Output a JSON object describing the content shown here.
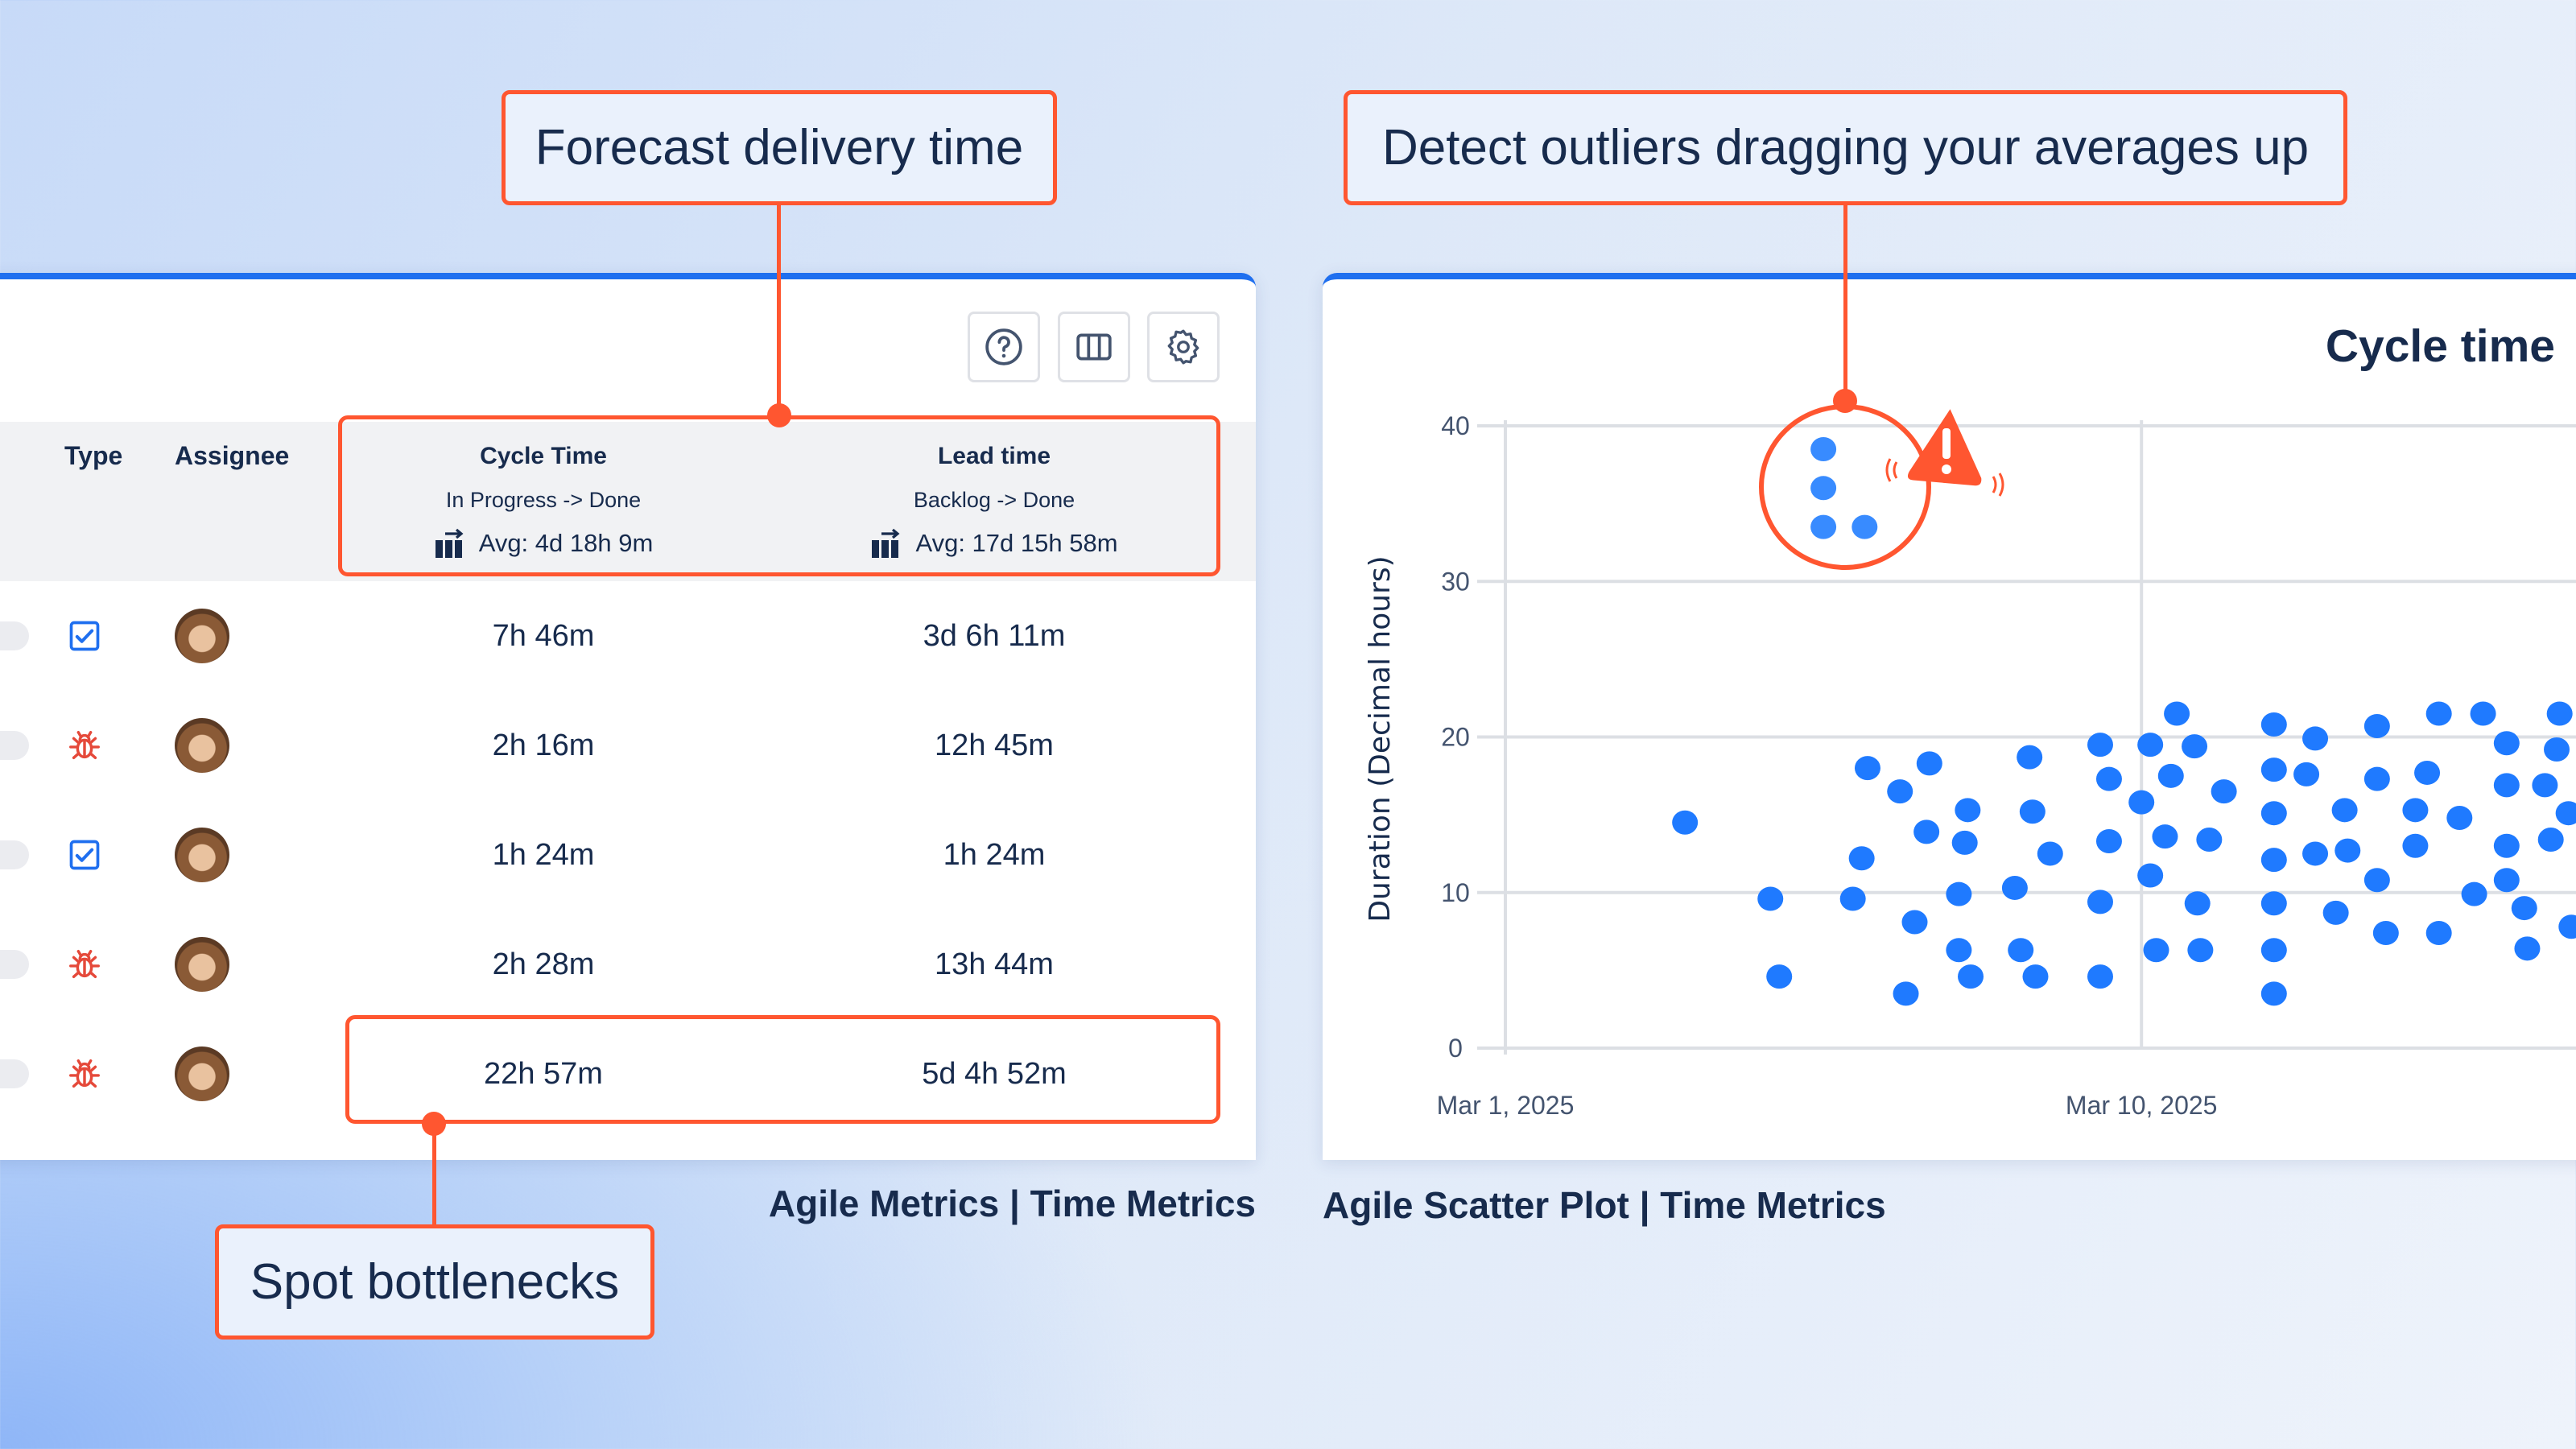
{
  "callouts": {
    "forecast": "Forecast delivery time",
    "outliers": "Detect outliers dragging your averages up",
    "bottlenecks": "Spot bottlenecks"
  },
  "table_panel": {
    "toolbar": {
      "help_icon": "question-circle-icon",
      "columns_icon": "columns-icon",
      "settings_icon": "gear-icon"
    },
    "headers": {
      "type": "Type",
      "assignee": "Assignee"
    },
    "cycle": {
      "title": "Cycle Time",
      "transition": "In Progress -> Done",
      "avg": "Avg: 4d 18h 9m"
    },
    "lead": {
      "title": "Lead time",
      "transition": "Backlog -> Done",
      "avg": "Avg: 17d 15h 58m"
    },
    "rows": [
      {
        "type": "task",
        "cycle": "7h 46m",
        "lead": "3d 6h 11m"
      },
      {
        "type": "bug",
        "cycle": "2h 16m",
        "lead": "12h 45m"
      },
      {
        "type": "task",
        "cycle": "1h 24m",
        "lead": "1h 24m"
      },
      {
        "type": "bug",
        "cycle": "2h 28m",
        "lead": "13h 44m"
      },
      {
        "type": "bug",
        "cycle": "22h 57m",
        "lead": "5d 4h 52m"
      }
    ],
    "caption": "Agile Metrics | Time Metrics"
  },
  "chart_panel": {
    "caption": "Agile Scatter Plot | Time Metrics"
  },
  "colors": {
    "accent": "#1f6fef",
    "callout": "#ff5630",
    "point": "#2684ff",
    "bug": "#e5493a"
  },
  "chart_data": {
    "type": "scatter",
    "title": "Cycle time",
    "ylabel": "Duration (Decimal hours)",
    "xlabel": "",
    "ylim": [
      0,
      40
    ],
    "yticks": [
      "0",
      "10",
      "20",
      "30",
      "40"
    ],
    "xticks": [
      {
        "label": "Mar 1, 2025",
        "value": "2025-03-01T00:00"
      },
      {
        "label": "Mar 10, 2025",
        "value": "2025-03-10T00:00"
      }
    ],
    "grid": true,
    "outliers_highlighted": true,
    "points": [
      {
        "x": "2025-03-05T12:00",
        "y": 38.5
      },
      {
        "x": "2025-03-05T12:00",
        "y": 36.0
      },
      {
        "x": "2025-03-05T12:00",
        "y": 33.5
      },
      {
        "x": "2025-03-06T02:00",
        "y": 33.5
      },
      {
        "x": "2025-03-03T13:00",
        "y": 14.5
      },
      {
        "x": "2025-03-04T18:00",
        "y": 9.6
      },
      {
        "x": "2025-03-04T21:00",
        "y": 4.6
      },
      {
        "x": "2025-03-05T22:00",
        "y": 9.6
      },
      {
        "x": "2025-03-06T01:00",
        "y": 12.2
      },
      {
        "x": "2025-03-06T03:00",
        "y": 18.0
      },
      {
        "x": "2025-03-06T14:00",
        "y": 16.5
      },
      {
        "x": "2025-03-06T16:00",
        "y": 3.5
      },
      {
        "x": "2025-03-06T19:00",
        "y": 8.1
      },
      {
        "x": "2025-03-06T23:00",
        "y": 13.9
      },
      {
        "x": "2025-03-07T00:00",
        "y": 18.3
      },
      {
        "x": "2025-03-07T10:00",
        "y": 9.9
      },
      {
        "x": "2025-03-07T10:00",
        "y": 6.3
      },
      {
        "x": "2025-03-07T12:00",
        "y": 13.2
      },
      {
        "x": "2025-03-07T13:00",
        "y": 15.3
      },
      {
        "x": "2025-03-07T14:00",
        "y": 4.6
      },
      {
        "x": "2025-03-08T05:00",
        "y": 10.3
      },
      {
        "x": "2025-03-08T07:00",
        "y": 6.3
      },
      {
        "x": "2025-03-08T10:00",
        "y": 18.7
      },
      {
        "x": "2025-03-08T11:00",
        "y": 15.2
      },
      {
        "x": "2025-03-08T12:00",
        "y": 4.6
      },
      {
        "x": "2025-03-08T17:00",
        "y": 12.5
      },
      {
        "x": "2025-03-09T10:00",
        "y": 19.5
      },
      {
        "x": "2025-03-09T10:00",
        "y": 9.4
      },
      {
        "x": "2025-03-09T10:00",
        "y": 4.6
      },
      {
        "x": "2025-03-09T13:00",
        "y": 17.3
      },
      {
        "x": "2025-03-09T13:00",
        "y": 13.3
      },
      {
        "x": "2025-03-10T00:00",
        "y": 15.8
      },
      {
        "x": "2025-03-10T03:00",
        "y": 19.5
      },
      {
        "x": "2025-03-10T03:00",
        "y": 11.1
      },
      {
        "x": "2025-03-10T05:00",
        "y": 6.3
      },
      {
        "x": "2025-03-10T10:00",
        "y": 17.5
      },
      {
        "x": "2025-03-10T12:00",
        "y": 21.5
      },
      {
        "x": "2025-03-10T18:00",
        "y": 19.4
      },
      {
        "x": "2025-03-10T19:00",
        "y": 9.3
      },
      {
        "x": "2025-03-10T08:00",
        "y": 13.6
      },
      {
        "x": "2025-03-10T23:00",
        "y": 13.4
      },
      {
        "x": "2025-03-10T20:00",
        "y": 6.3
      },
      {
        "x": "2025-03-11T04:00",
        "y": 16.5
      },
      {
        "x": "2025-03-11T21:00",
        "y": 20.8
      },
      {
        "x": "2025-03-11T21:00",
        "y": 17.9
      },
      {
        "x": "2025-03-11T21:00",
        "y": 15.1
      },
      {
        "x": "2025-03-11T21:00",
        "y": 12.1
      },
      {
        "x": "2025-03-11T21:00",
        "y": 9.3
      },
      {
        "x": "2025-03-11T21:00",
        "y": 6.3
      },
      {
        "x": "2025-03-11T21:00",
        "y": 3.5
      },
      {
        "x": "2025-03-12T08:00",
        "y": 17.6
      },
      {
        "x": "2025-03-12T11:00",
        "y": 19.9
      },
      {
        "x": "2025-03-12T11:00",
        "y": 12.5
      },
      {
        "x": "2025-03-12T18:00",
        "y": 8.7
      },
      {
        "x": "2025-03-12T21:00",
        "y": 15.3
      },
      {
        "x": "2025-03-12T22:00",
        "y": 12.7
      },
      {
        "x": "2025-03-13T08:00",
        "y": 20.7
      },
      {
        "x": "2025-03-13T08:00",
        "y": 17.3
      },
      {
        "x": "2025-03-13T08:00",
        "y": 10.8
      },
      {
        "x": "2025-03-13T11:00",
        "y": 7.4
      },
      {
        "x": "2025-03-13T21:00",
        "y": 15.3
      },
      {
        "x": "2025-03-13T21:00",
        "y": 13.0
      },
      {
        "x": "2025-03-14T01:00",
        "y": 17.7
      },
      {
        "x": "2025-03-14T05:00",
        "y": 21.5
      },
      {
        "x": "2025-03-14T05:00",
        "y": 7.4
      },
      {
        "x": "2025-03-14T12:00",
        "y": 14.8
      },
      {
        "x": "2025-03-14T17:00",
        "y": 9.9
      },
      {
        "x": "2025-03-14T20:00",
        "y": 21.5
      },
      {
        "x": "2025-03-15T04:00",
        "y": 19.6
      },
      {
        "x": "2025-03-15T04:00",
        "y": 16.9
      },
      {
        "x": "2025-03-15T04:00",
        "y": 13.0
      },
      {
        "x": "2025-03-15T04:00",
        "y": 10.8
      },
      {
        "x": "2025-03-15T10:00",
        "y": 9.0
      },
      {
        "x": "2025-03-15T11:00",
        "y": 6.4
      },
      {
        "x": "2025-03-15T17:00",
        "y": 16.9
      },
      {
        "x": "2025-03-15T19:00",
        "y": 13.4
      },
      {
        "x": "2025-03-15T21:00",
        "y": 19.2
      },
      {
        "x": "2025-03-15T22:00",
        "y": 21.5
      },
      {
        "x": "2025-03-16T01:00",
        "y": 15.1
      },
      {
        "x": "2025-03-16T02:00",
        "y": 7.8
      }
    ]
  }
}
